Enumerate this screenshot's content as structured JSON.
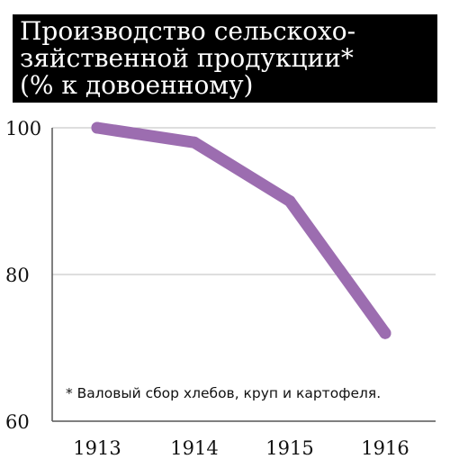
{
  "chart_data": {
    "type": "line",
    "title_lines": [
      "Производство сельскохо-",
      "зяйственной продукции*",
      "(% к довоенному)"
    ],
    "footnote": "* Валовый сбор хлебов, круп и картофеля.",
    "categories": [
      "1913",
      "1914",
      "1915",
      "1916"
    ],
    "series": [
      {
        "values": [
          100,
          98,
          90,
          72
        ]
      }
    ],
    "y_ticks": [
      "100",
      "80",
      "60"
    ],
    "ylim": [
      60,
      100
    ],
    "grid": true,
    "colors": {
      "line": "#9c6db0",
      "grid": "#bdbdbd",
      "axis": "#555555",
      "title_bg": "#000000"
    }
  }
}
